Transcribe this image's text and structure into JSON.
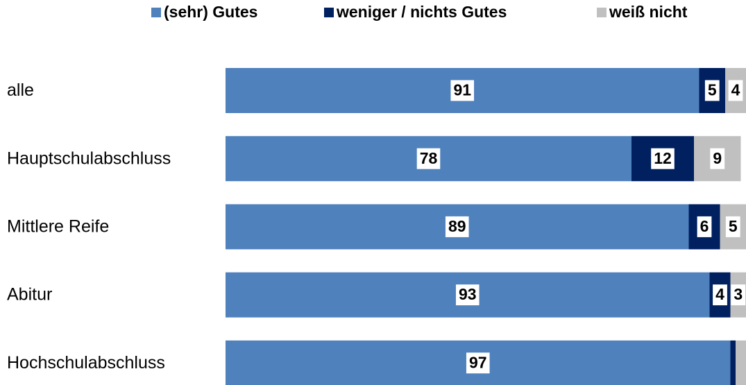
{
  "chart_data": {
    "type": "stacked-barh",
    "categories": [
      "alle",
      "Hauptschulabschluss",
      "Mittlere Reife",
      "Abitur",
      "Hochschulabschluss"
    ],
    "series": [
      {
        "name": "(sehr) Gutes",
        "color": "#4f81bd",
        "values": [
          91,
          78,
          89,
          93,
          97
        ],
        "value_labels": [
          "91",
          "78",
          "89",
          "93",
          "97"
        ]
      },
      {
        "name": "weniger / nichts Gutes",
        "color": "#002060",
        "values": [
          5,
          12,
          6,
          4,
          1
        ],
        "value_labels": [
          "5",
          "12",
          "6",
          "4",
          null
        ]
      },
      {
        "name": "weiß nicht",
        "color": "#c0c0c0",
        "values": [
          4,
          9,
          5,
          3,
          2
        ],
        "value_labels": [
          "4",
          "9",
          "5",
          "3",
          null
        ]
      }
    ],
    "xlim": [
      0,
      100
    ],
    "legend": "top"
  }
}
